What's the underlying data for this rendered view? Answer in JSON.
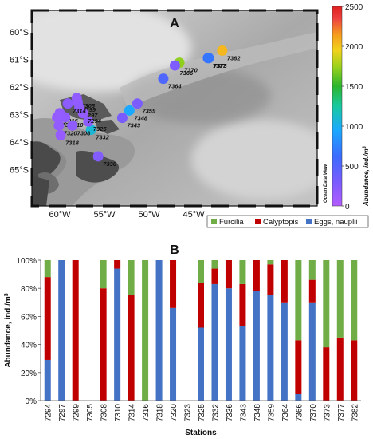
{
  "panel_a": {
    "label": "A",
    "lat_ticks": [
      {
        "lat": 60,
        "label": "60°S"
      },
      {
        "lat": 61,
        "label": "61°S"
      },
      {
        "lat": 62,
        "label": "62°S"
      },
      {
        "lat": 63,
        "label": "63°S"
      },
      {
        "lat": 64,
        "label": "64°S"
      },
      {
        "lat": 65,
        "label": "65°S"
      }
    ],
    "lon_ticks": [
      {
        "lon": -60,
        "label": "60°W"
      },
      {
        "lon": -55,
        "label": "55°W"
      },
      {
        "lon": -50,
        "label": "50°W"
      },
      {
        "lon": -45,
        "label": "45°W"
      }
    ],
    "watermark": "Ocean Data View",
    "colorbar": {
      "min": 0,
      "max": 2500,
      "ticks": [
        {
          "v": 0,
          "label": "0"
        },
        {
          "v": 500,
          "label": "500"
        },
        {
          "v": 1000,
          "label": "1000"
        },
        {
          "v": 1500,
          "label": "1500"
        },
        {
          "v": 2000,
          "label": "2000"
        },
        {
          "v": 2500,
          "label": "2500"
        }
      ],
      "title": "Abundance, ind./m",
      "title_sup": "3"
    },
    "stations": [
      {
        "id": "7382",
        "lon": -41.8,
        "lat": 60.68,
        "abundance": 2050
      },
      {
        "id": "7377",
        "lon": -43.4,
        "lat": 60.95,
        "abundance": 640
      },
      {
        "id": "7373",
        "lon": -43.3,
        "lat": 60.95,
        "abundance": 680
      },
      {
        "id": "7370",
        "lon": -46.6,
        "lat": 61.12,
        "abundance": 1720
      },
      {
        "id": "7366",
        "lon": -47.1,
        "lat": 61.22,
        "abundance": 280
      },
      {
        "id": "7364",
        "lon": -48.4,
        "lat": 61.7,
        "abundance": 520
      },
      {
        "id": "7359",
        "lon": -51.3,
        "lat": 62.6,
        "abundance": 300
      },
      {
        "id": "7348",
        "lon": -52.2,
        "lat": 62.85,
        "abundance": 950
      },
      {
        "id": "7343",
        "lon": -53.0,
        "lat": 63.12,
        "abundance": 310
      },
      {
        "id": "7336",
        "lon": -55.7,
        "lat": 64.52,
        "abundance": 260
      },
      {
        "id": "7332",
        "lon": -56.5,
        "lat": 63.55,
        "abundance": 1080
      },
      {
        "id": "7325",
        "lon": -56.8,
        "lat": 63.25,
        "abundance": 200
      },
      {
        "id": "7305",
        "lon": -58.1,
        "lat": 62.4,
        "abundance": 180
      },
      {
        "id": "7299",
        "lon": -58.0,
        "lat": 62.55,
        "abundance": 170
      },
      {
        "id": "7297",
        "lon": -57.8,
        "lat": 62.75,
        "abundance": 190
      },
      {
        "id": "7294",
        "lon": -57.4,
        "lat": 62.95,
        "abundance": 160
      },
      {
        "id": "7314",
        "lon": -59.1,
        "lat": 62.6,
        "abundance": 200
      },
      {
        "id": "7316",
        "lon": -60.0,
        "lat": 62.95,
        "abundance": 170
      },
      {
        "id": "7310",
        "lon": -59.4,
        "lat": 63.1,
        "abundance": 180
      },
      {
        "id": "7323",
        "lon": -60.3,
        "lat": 63.1,
        "abundance": 160
      },
      {
        "id": "7308",
        "lon": -58.6,
        "lat": 63.4,
        "abundance": 190
      },
      {
        "id": "7320",
        "lon": -60.1,
        "lat": 63.4,
        "abundance": 170
      },
      {
        "id": "7318",
        "lon": -59.9,
        "lat": 63.75,
        "abundance": 150
      }
    ]
  },
  "panel_b": {
    "label": "B",
    "chart_data": {
      "type": "bar",
      "stacked": true,
      "categories": [
        "7294",
        "7297",
        "7299",
        "7305",
        "7308",
        "7310",
        "7314",
        "7316",
        "7318",
        "7320",
        "7323",
        "7325",
        "7332",
        "7336",
        "7343",
        "7348",
        "7359",
        "7364",
        "7366",
        "7370",
        "7373",
        "7377",
        "7382"
      ],
      "series": [
        {
          "name": "Eggs, nauplii",
          "color": "#4472C4",
          "values": [
            29,
            100,
            0,
            0,
            0,
            94,
            0,
            0,
            100,
            66,
            0,
            52,
            83,
            80,
            53,
            78,
            75,
            70,
            5,
            70,
            0,
            0,
            0
          ]
        },
        {
          "name": "Calyptopis",
          "color": "#C00000",
          "values": [
            59,
            0,
            100,
            0,
            80,
            6,
            75,
            0,
            0,
            34,
            0,
            32,
            11,
            20,
            30,
            22,
            22,
            30,
            38,
            16,
            38,
            45,
            43
          ]
        },
        {
          "name": "Furcilia",
          "color": "#70AD47",
          "values": [
            12,
            0,
            0,
            0,
            20,
            0,
            25,
            100,
            0,
            0,
            0,
            16,
            6,
            0,
            17,
            0,
            3,
            0,
            57,
            14,
            62,
            55,
            57
          ]
        }
      ],
      "legend_order": [
        "Furcilia",
        "Calyptopis",
        "Eggs, nauplii"
      ],
      "legend_position": "top-right",
      "xlabel": "Stations",
      "ylabel": "Abundance, ind./m",
      "ylabel_sup": "3",
      "ylim": [
        0,
        100
      ],
      "yticks": [
        "0%",
        "20%",
        "40%",
        "60%",
        "80%",
        "100%"
      ]
    }
  }
}
